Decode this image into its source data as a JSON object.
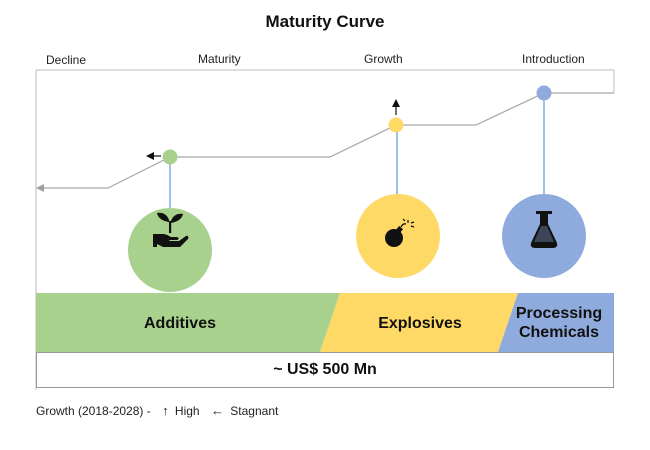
{
  "title": "Maturity Curve",
  "stages": [
    "Decline",
    "Maturity",
    "Growth",
    "Introduction"
  ],
  "segments": [
    {
      "name": "Additives",
      "icon": "plant-in-hand-icon",
      "growth": "Stagnant",
      "color": "#a9d18e"
    },
    {
      "name": "Explosives",
      "icon": "bomb-icon",
      "growth": "High",
      "color": "#ffd966"
    },
    {
      "name": "Processing Chemicals",
      "name_line1": "Processing",
      "name_line2": "Chemicals",
      "icon": "flask-icon",
      "growth": "High",
      "color": "#8faadc"
    }
  ],
  "market_size": "~ US$ 500 Mn",
  "legend": {
    "label": "Growth (2018-2028) -",
    "high": "High",
    "stagnant": "Stagnant"
  }
}
